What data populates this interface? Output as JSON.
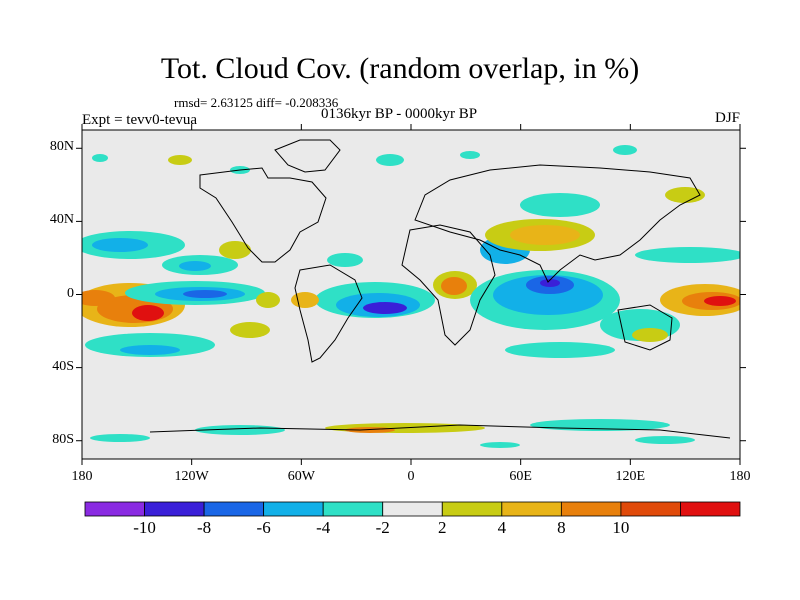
{
  "title": "Tot. Cloud Cov. (random overlap, in %)",
  "stats_text": "rmsd= 2.63125 diff= -0.208336",
  "experiment_text": "Expt = tevv0-tevua",
  "period_text": "0136kyr BP - 0000kyr BP",
  "season_text": "DJF",
  "lat_axis": {
    "ticks": [
      {
        "label": "80N",
        "lat": 80
      },
      {
        "label": "40N",
        "lat": 40
      },
      {
        "label": "0",
        "lat": 0
      },
      {
        "label": "40S",
        "lat": -40
      },
      {
        "label": "80S",
        "lat": -80
      }
    ],
    "range": [
      -90,
      90
    ]
  },
  "lon_axis": {
    "ticks": [
      {
        "label": "180",
        "lon": -180
      },
      {
        "label": "120W",
        "lon": -120
      },
      {
        "label": "60W",
        "lon": -60
      },
      {
        "label": "0",
        "lon": 0
      },
      {
        "label": "60E",
        "lon": 60
      },
      {
        "label": "120E",
        "lon": 120
      },
      {
        "label": "180",
        "lon": 180
      }
    ],
    "range": [
      -180,
      180
    ]
  },
  "colorbar": {
    "colors": [
      "#8a2be2",
      "#3a1fd8",
      "#1a66e6",
      "#12b0e8",
      "#2fe0c6",
      "#eaeaea",
      "#c8cc14",
      "#e8b418",
      "#e8800c",
      "#e04a0a",
      "#e01010"
    ],
    "labels": [
      "-10",
      "-8",
      "-6",
      "-4",
      "-2",
      "2",
      "4",
      "8",
      "10"
    ]
  },
  "map_background": "#eaeaea"
}
